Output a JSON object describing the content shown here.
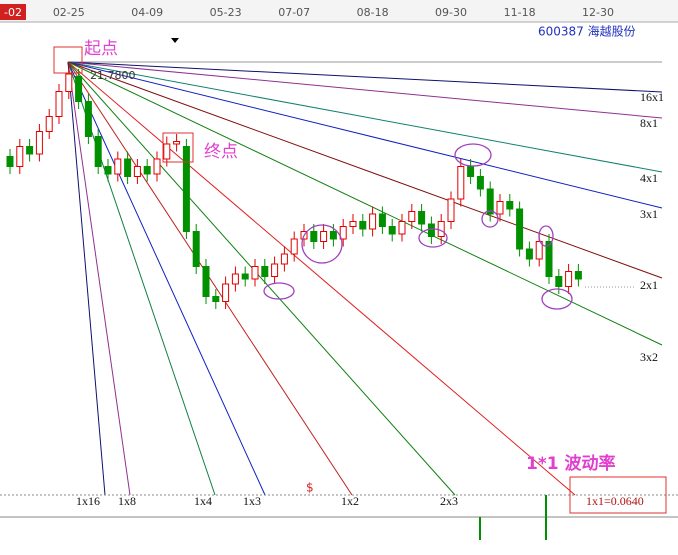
{
  "chart_data": {
    "type": "candlestick",
    "stock": "600387 海越股份",
    "x": [
      null,
      null,
      null,
      null,
      null,
      null,
      "02-25",
      null,
      null,
      null,
      null,
      null,
      null,
      null,
      "04-09",
      null,
      null,
      null,
      null,
      null,
      null,
      null,
      "05-23",
      null,
      null,
      null,
      null,
      null,
      null,
      "07-07",
      null,
      null,
      null,
      null,
      null,
      null,
      null,
      "08-18",
      null,
      null,
      null,
      null,
      null,
      null,
      null,
      "09-30",
      null,
      null,
      null,
      null,
      null,
      null,
      "11-18",
      null,
      null,
      null,
      null,
      null,
      null,
      null,
      "12-30"
    ],
    "open": [
      18.0,
      17.6,
      18.4,
      18.1,
      19.0,
      19.6,
      20.6,
      21.2,
      20.2,
      18.8,
      17.6,
      17.3,
      17.9,
      17.2,
      17.6,
      17.3,
      17.9,
      18.5,
      18.4,
      15.0,
      13.6,
      12.4,
      12.2,
      12.9,
      13.3,
      13.1,
      13.6,
      13.2,
      13.7,
      14.1,
      14.7,
      15.0,
      14.6,
      15.0,
      14.7,
      15.2,
      15.4,
      15.1,
      15.7,
      15.2,
      14.9,
      15.4,
      15.8,
      15.3,
      14.8,
      15.4,
      16.3,
      17.6,
      17.2,
      16.7,
      15.7,
      16.2,
      15.9,
      14.3,
      13.9,
      14.6,
      13.2,
      12.8,
      13.4,
      null,
      null
    ],
    "high": [
      18.3,
      18.7,
      18.7,
      19.3,
      19.9,
      20.9,
      21.78,
      21.5,
      20.5,
      19.1,
      17.9,
      18.2,
      18.2,
      17.9,
      17.9,
      18.2,
      18.8,
      18.9,
      18.7,
      15.3,
      13.9,
      12.7,
      13.2,
      13.6,
      13.6,
      13.9,
      13.9,
      14.0,
      14.4,
      15.0,
      15.3,
      15.3,
      15.3,
      15.3,
      15.5,
      15.7,
      15.7,
      16.0,
      16.0,
      15.5,
      15.7,
      16.1,
      16.1,
      15.6,
      15.7,
      16.6,
      17.9,
      17.9,
      17.5,
      17.0,
      16.5,
      16.5,
      16.2,
      14.6,
      14.9,
      14.9,
      13.5,
      13.7,
      13.7,
      null,
      null
    ],
    "low": [
      17.3,
      17.3,
      17.8,
      17.8,
      18.7,
      19.3,
      20.3,
      19.9,
      18.5,
      17.3,
      17.0,
      17.0,
      16.9,
      16.9,
      17.0,
      17.0,
      17.6,
      18.2,
      14.7,
      13.3,
      12.1,
      11.9,
      11.9,
      12.6,
      12.8,
      12.8,
      12.9,
      12.9,
      13.4,
      13.8,
      14.4,
      14.3,
      14.3,
      14.4,
      14.4,
      14.9,
      14.8,
      14.8,
      14.9,
      14.6,
      14.6,
      15.1,
      15.0,
      14.5,
      14.5,
      15.1,
      16.0,
      16.9,
      16.4,
      15.4,
      15.4,
      15.6,
      14.0,
      13.6,
      13.6,
      12.9,
      12.5,
      12.5,
      12.8,
      null,
      null
    ],
    "close": [
      17.6,
      18.4,
      18.1,
      19.0,
      19.6,
      20.6,
      21.3,
      20.2,
      18.8,
      17.6,
      17.3,
      17.9,
      17.2,
      17.6,
      17.3,
      17.9,
      18.5,
      18.6,
      15.0,
      13.6,
      12.4,
      12.2,
      12.9,
      13.3,
      13.1,
      13.6,
      13.2,
      13.7,
      14.1,
      14.7,
      15.0,
      14.6,
      15.0,
      14.7,
      15.2,
      15.4,
      15.1,
      15.7,
      15.2,
      14.9,
      15.4,
      15.8,
      15.3,
      14.8,
      15.4,
      16.3,
      17.6,
      17.2,
      16.7,
      15.7,
      16.2,
      15.9,
      14.3,
      13.9,
      14.6,
      13.2,
      12.8,
      13.4,
      13.1,
      null,
      null
    ],
    "ylim": [
      4.46,
      23.46
    ],
    "up_color": "#e00000",
    "down_color": "#009000"
  },
  "toolbar": {
    "period": "-02"
  },
  "annotations": {
    "start": "起点",
    "end": "终点",
    "start_price": "21.7800",
    "rate_title": "1*1 波动率",
    "rate": "1x1=0.0640",
    "marker": "$"
  },
  "fan_labels": {
    "right": [
      "16x1",
      "8x1",
      "4x1",
      "3x1",
      "2x1",
      "3x2"
    ],
    "bottom": [
      "1x16",
      "1x8",
      "1x4",
      "1x3",
      "1x2",
      "2x3"
    ]
  }
}
